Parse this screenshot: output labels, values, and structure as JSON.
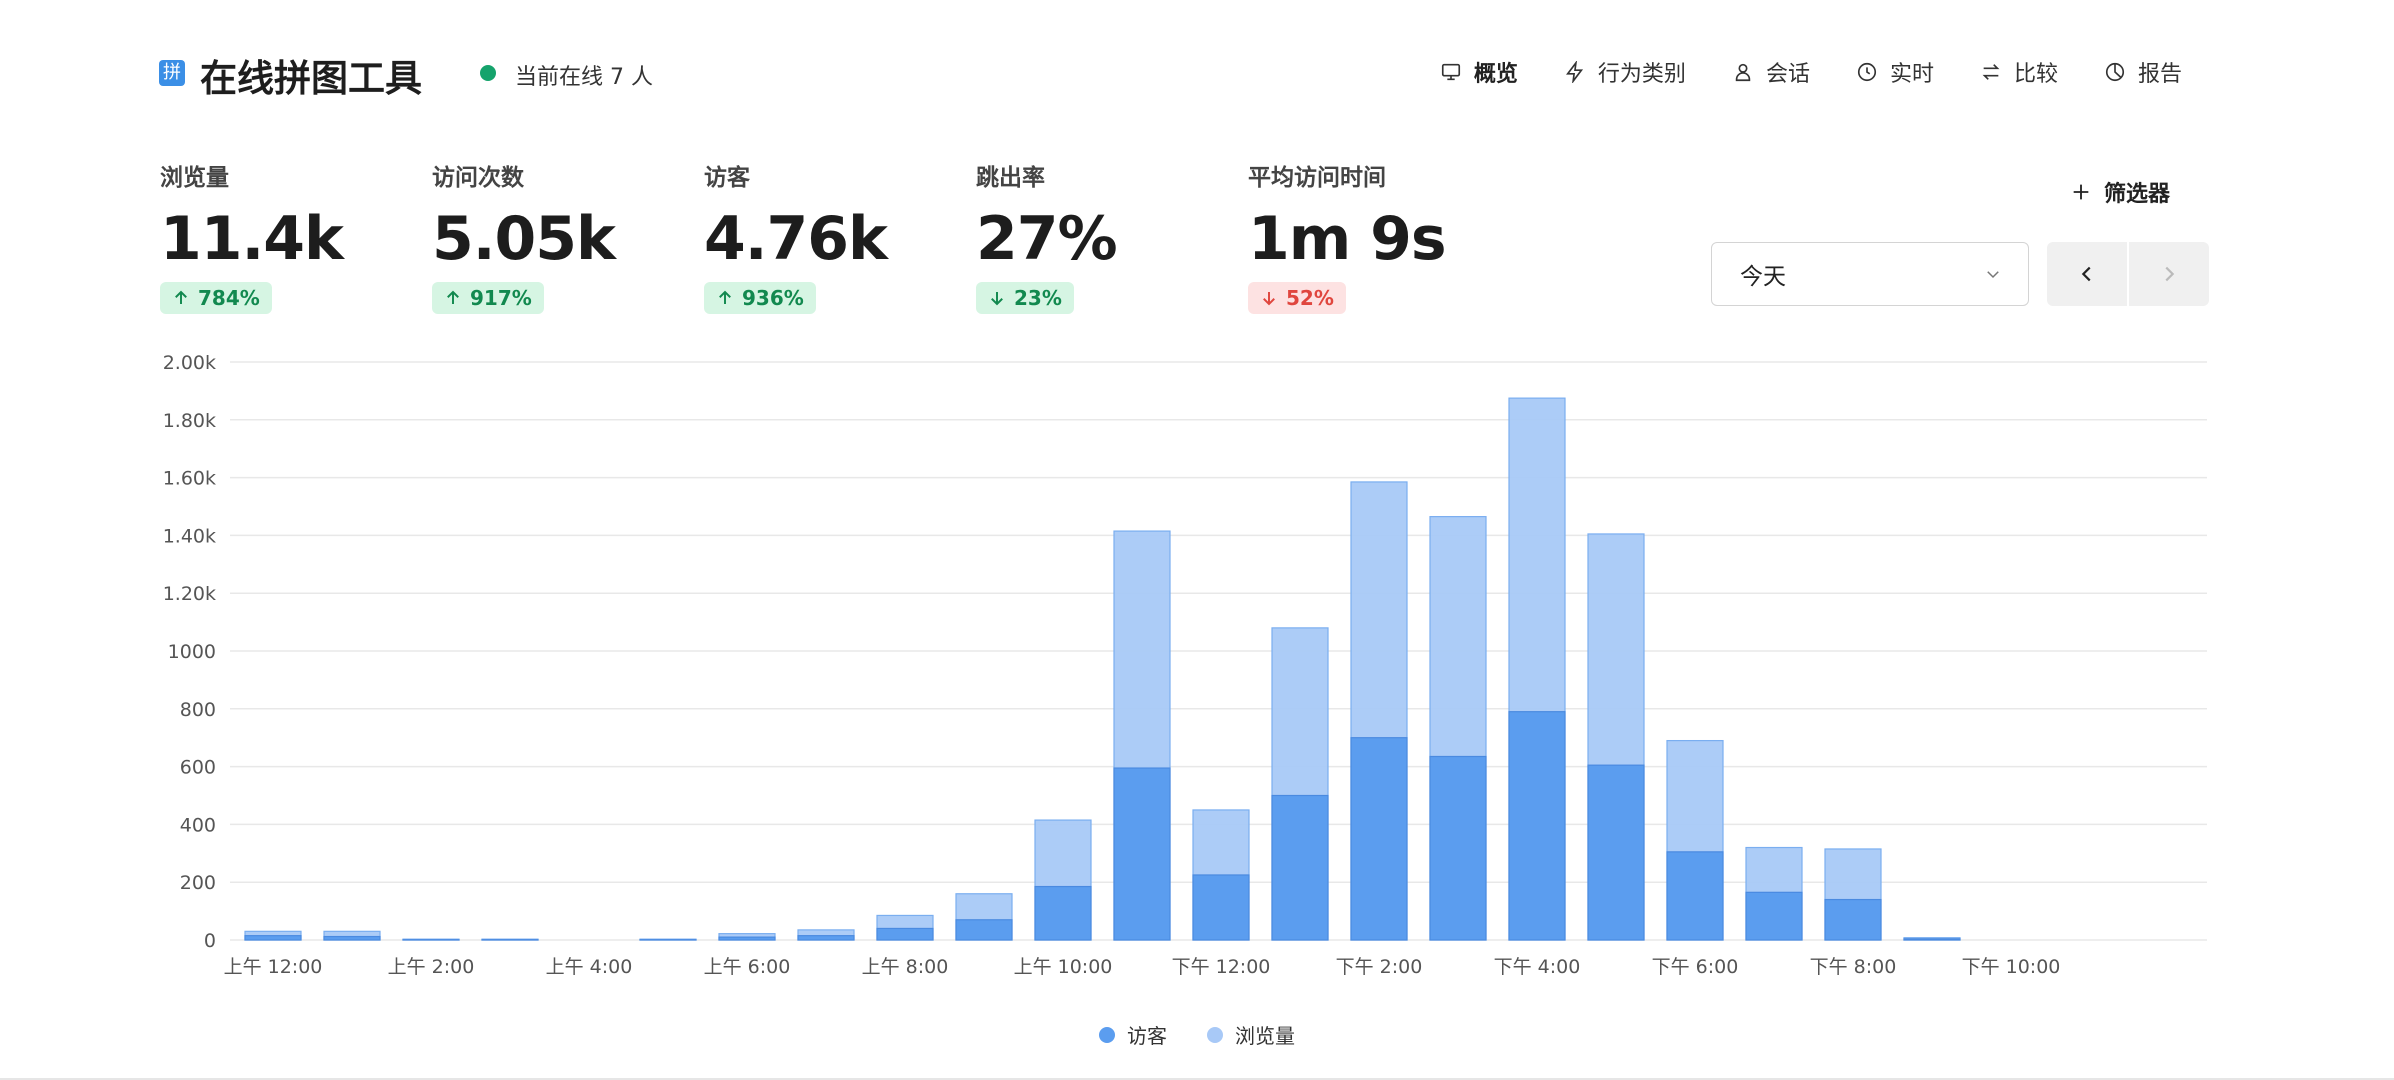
{
  "header": {
    "logo_glyph": "拼",
    "site_title": "在线拼图工具",
    "online_text": "当前在线 7 人",
    "online_color": "#15a36c"
  },
  "nav": [
    {
      "label": "概览",
      "icon": "monitor-icon",
      "active": true
    },
    {
      "label": "行为类别",
      "icon": "lightning-icon",
      "active": false
    },
    {
      "label": "会话",
      "icon": "user-icon",
      "active": false
    },
    {
      "label": "实时",
      "icon": "clock-icon",
      "active": false
    },
    {
      "label": "比较",
      "icon": "swap-icon",
      "active": false
    },
    {
      "label": "报告",
      "icon": "pie-icon",
      "active": false
    }
  ],
  "metrics": [
    {
      "label": "浏览量",
      "value": "11.4k",
      "change": "784%",
      "direction": "up",
      "tone": "good"
    },
    {
      "label": "访问次数",
      "value": "5.05k",
      "change": "917%",
      "direction": "up",
      "tone": "good"
    },
    {
      "label": "访客",
      "value": "4.76k",
      "change": "936%",
      "direction": "up",
      "tone": "good"
    },
    {
      "label": "跳出率",
      "value": "27%",
      "change": "23%",
      "direction": "down",
      "tone": "good"
    },
    {
      "label": "平均访问时间",
      "value": "1m 9s",
      "change": "52%",
      "direction": "down",
      "tone": "bad"
    }
  ],
  "controls": {
    "filter_label": "筛选器",
    "date_range": "今天"
  },
  "chart_data": {
    "type": "bar",
    "stacked": "overlay",
    "categories": [
      "上午 12:00",
      "上午 1:00",
      "上午 2:00",
      "上午 3:00",
      "上午 4:00",
      "上午 5:00",
      "上午 6:00",
      "上午 7:00",
      "上午 8:00",
      "上午 9:00",
      "上午 10:00",
      "上午 11:00",
      "下午 12:00",
      "下午 1:00",
      "下午 2:00",
      "下午 3:00",
      "下午 4:00",
      "下午 5:00",
      "下午 6:00",
      "下午 7:00",
      "下午 8:00",
      "下午 9:00",
      "下午 10:00",
      "下午 11:00"
    ],
    "tick_labels": [
      "上午 12:00",
      "上午 2:00",
      "上午 4:00",
      "上午 6:00",
      "上午 8:00",
      "上午 10:00",
      "下午 12:00",
      "下午 2:00",
      "下午 4:00",
      "下午 6:00",
      "下午 8:00",
      "下午 10:00"
    ],
    "series": [
      {
        "name": "访客",
        "color": "#5b9def",
        "values": [
          15,
          12,
          1,
          1,
          0,
          1,
          10,
          15,
          40,
          70,
          185,
          595,
          225,
          500,
          700,
          635,
          790,
          605,
          305,
          165,
          140,
          4,
          0,
          0
        ]
      },
      {
        "name": "浏览量",
        "color": "#a8c9f7",
        "values": [
          30,
          30,
          3,
          3,
          0,
          3,
          22,
          35,
          85,
          160,
          415,
          1415,
          450,
          1080,
          1585,
          1465,
          1875,
          1405,
          690,
          320,
          315,
          8,
          0,
          0
        ]
      }
    ],
    "y_tick_labels": [
      "0",
      "200",
      "400",
      "600",
      "800",
      "1000",
      "1.20k",
      "1.40k",
      "1.60k",
      "1.80k",
      "2.00k"
    ],
    "ylim": [
      0,
      2000
    ],
    "grid": true,
    "legend_position": "bottom-center"
  }
}
